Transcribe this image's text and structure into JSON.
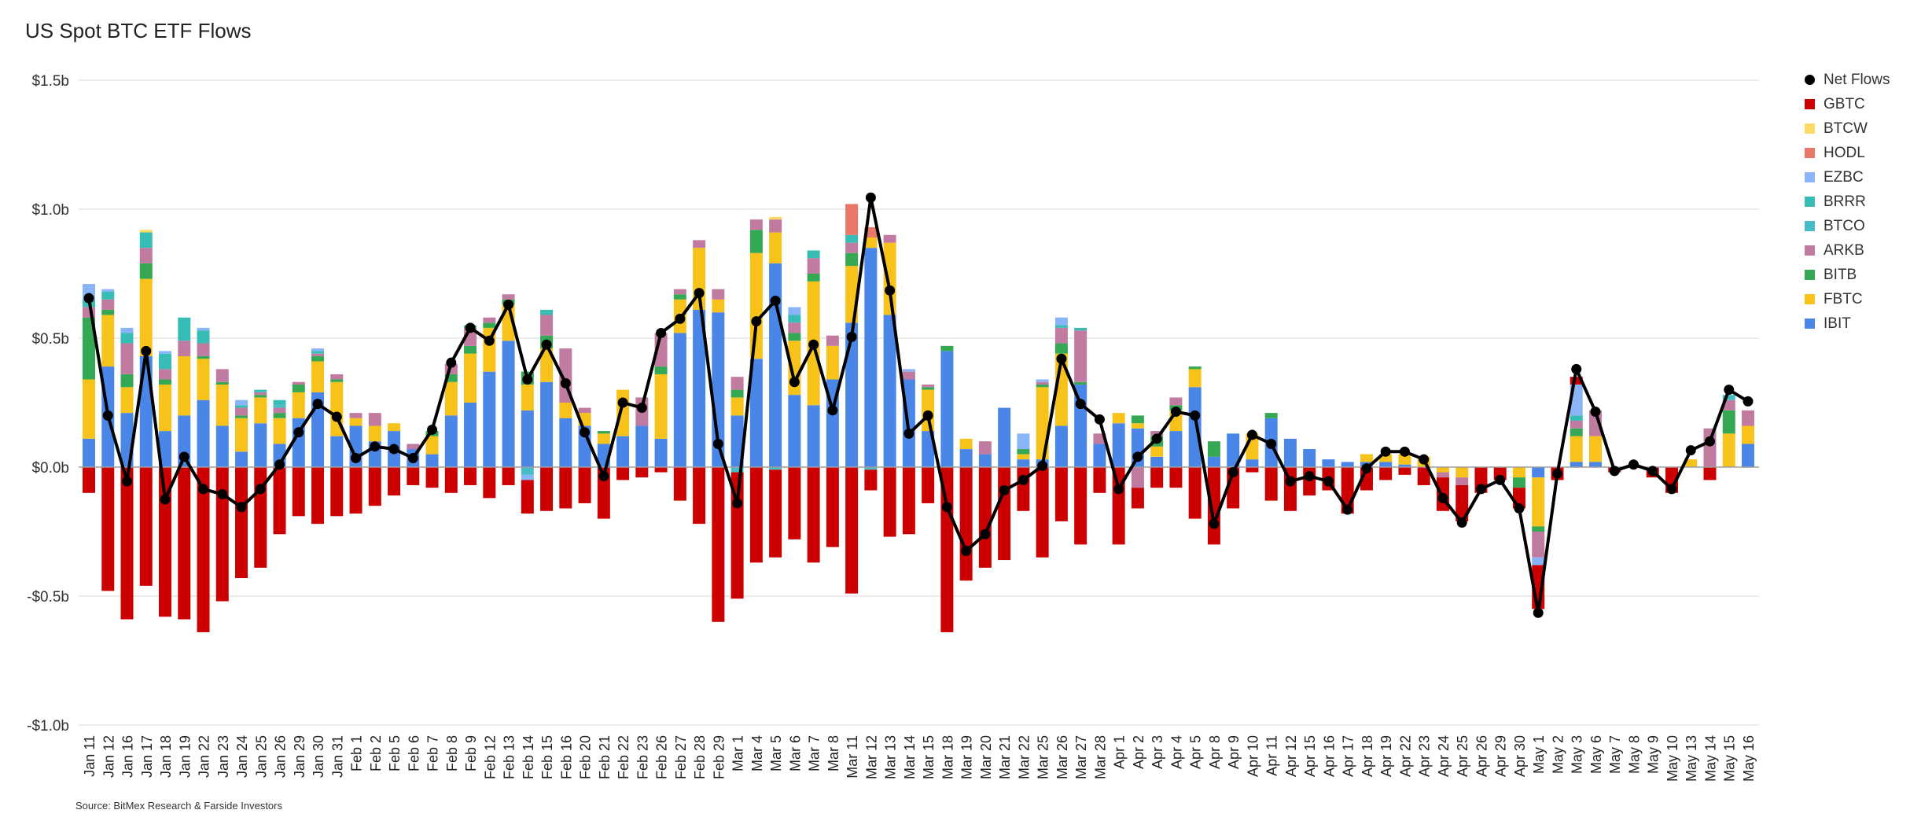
{
  "chart_data": {
    "type": "bar",
    "title": "US Spot BTC ETF Flows",
    "source": "Source: BitMex Research & Farside Investors",
    "ylim": [
      -1.0,
      1.5
    ],
    "yticks": [
      {
        "value": 1.5,
        "label": "$1.5b"
      },
      {
        "value": 1.0,
        "label": "$1.0b"
      },
      {
        "value": 0.5,
        "label": "$0.5b"
      },
      {
        "value": 0.0,
        "label": "$0.0b"
      },
      {
        "value": -0.5,
        "label": "-$0.5b"
      },
      {
        "value": -1.0,
        "label": "-$1.0b"
      }
    ],
    "grid": true,
    "legend_position": "right",
    "categories": [
      "Jan 11",
      "Jan 12",
      "Jan 16",
      "Jan 17",
      "Jan 18",
      "Jan 19",
      "Jan 22",
      "Jan 23",
      "Jan 24",
      "Jan 25",
      "Jan 26",
      "Jan 29",
      "Jan 30",
      "Jan 31",
      "Feb 1",
      "Feb 2",
      "Feb 5",
      "Feb 6",
      "Feb 7",
      "Feb 8",
      "Feb 9",
      "Feb 12",
      "Feb 13",
      "Feb 14",
      "Feb 15",
      "Feb 16",
      "Feb 20",
      "Feb 21",
      "Feb 22",
      "Feb 23",
      "Feb 26",
      "Feb 27",
      "Feb 28",
      "Feb 29",
      "Mar 1",
      "Mar 4",
      "Mar 5",
      "Mar 6",
      "Mar 7",
      "Mar 8",
      "Mar 11",
      "Mar 12",
      "Mar 13",
      "Mar 14",
      "Mar 15",
      "Mar 18",
      "Mar 19",
      "Mar 20",
      "Mar 21",
      "Mar 22",
      "Mar 25",
      "Mar 26",
      "Mar 27",
      "Mar 28",
      "Apr 1",
      "Apr 2",
      "Apr 3",
      "Apr 4",
      "Apr 5",
      "Apr 8",
      "Apr 9",
      "Apr 10",
      "Apr 11",
      "Apr 12",
      "Apr 15",
      "Apr 16",
      "Apr 17",
      "Apr 18",
      "Apr 19",
      "Apr 22",
      "Apr 23",
      "Apr 24",
      "Apr 25",
      "Apr 26",
      "Apr 29",
      "Apr 30",
      "May 1",
      "May 2",
      "May 3",
      "May 6",
      "May 7",
      "May 8",
      "May 9",
      "May 10",
      "May 13",
      "May 14",
      "May 15",
      "May 16"
    ],
    "series": [
      {
        "name": "IBIT",
        "color": "#4a86e8",
        "values": [
          0.11,
          0.39,
          0.21,
          0.43,
          0.14,
          0.2,
          0.26,
          0.16,
          0.06,
          0.17,
          0.09,
          0.19,
          0.29,
          0.12,
          0.16,
          0.1,
          0.14,
          0.07,
          0.05,
          0.2,
          0.25,
          0.37,
          0.49,
          0.22,
          0.33,
          0.19,
          0.16,
          0.09,
          0.12,
          0.16,
          0.11,
          0.52,
          0.61,
          0.6,
          0.2,
          0.42,
          0.79,
          0.28,
          0.24,
          0.34,
          0.56,
          0.85,
          0.59,
          0.34,
          0.14,
          0.45,
          0.07,
          0.05,
          0.23,
          0.03,
          0.03,
          0.16,
          0.32,
          0.09,
          0.17,
          0.15,
          0.04,
          0.14,
          0.31,
          0.04,
          0.13,
          0.03,
          0.19,
          0.11,
          0.07,
          0.03,
          0.02,
          0.02,
          0.02,
          0.01,
          0.0,
          0.0,
          0.0,
          0.0,
          0.0,
          0.0,
          -0.04,
          0.0,
          0.02,
          0.02,
          0.0,
          0.0,
          0.0,
          0.0,
          0.0,
          0.0,
          0.0,
          0.09
        ]
      },
      {
        "name": "FBTC",
        "color": "#f7c31a",
        "values": [
          0.23,
          0.2,
          0.1,
          0.3,
          0.18,
          0.23,
          0.16,
          0.16,
          0.13,
          0.1,
          0.1,
          0.1,
          0.12,
          0.21,
          0.03,
          0.06,
          0.03,
          0.0,
          0.07,
          0.13,
          0.19,
          0.17,
          0.14,
          0.1,
          0.13,
          0.06,
          0.05,
          0.04,
          0.18,
          0.0,
          0.25,
          0.13,
          0.24,
          0.05,
          0.07,
          0.41,
          0.12,
          0.21,
          0.48,
          0.13,
          0.22,
          0.04,
          0.28,
          0.0,
          0.16,
          0.0,
          0.04,
          0.0,
          0.0,
          0.02,
          0.28,
          0.28,
          0.0,
          0.0,
          0.04,
          0.02,
          0.04,
          0.08,
          0.07,
          0.0,
          0.0,
          0.1,
          0.0,
          0.0,
          0.0,
          0.0,
          0.0,
          0.03,
          0.03,
          0.04,
          0.04,
          -0.02,
          -0.04,
          0.0,
          0.0,
          -0.04,
          -0.19,
          0.0,
          0.1,
          0.1,
          0.0,
          0.0,
          0.0,
          0.0,
          0.03,
          0.0,
          0.13,
          0.07
        ]
      },
      {
        "name": "BITB",
        "color": "#34a853",
        "values": [
          0.24,
          0.02,
          0.05,
          0.06,
          0.02,
          0.0,
          0.01,
          0.01,
          0.01,
          0.01,
          0.02,
          0.03,
          0.02,
          0.01,
          0.0,
          0.0,
          0.0,
          0.0,
          0.02,
          0.03,
          0.03,
          0.02,
          0.02,
          0.05,
          0.05,
          0.0,
          0.0,
          0.01,
          0.0,
          0.0,
          0.03,
          0.02,
          0.0,
          0.0,
          0.03,
          0.09,
          0.0,
          0.03,
          0.03,
          0.0,
          0.05,
          0.0,
          0.0,
          0.0,
          0.01,
          0.02,
          0.0,
          0.0,
          0.0,
          0.02,
          0.01,
          0.04,
          0.01,
          0.0,
          0.0,
          0.03,
          0.04,
          0.02,
          0.01,
          0.06,
          0.0,
          0.0,
          0.02,
          0.0,
          0.0,
          0.0,
          0.0,
          0.0,
          0.0,
          0.0,
          0.0,
          0.0,
          0.0,
          0.0,
          0.0,
          -0.04,
          -0.02,
          0.0,
          0.03,
          0.0,
          0.0,
          0.0,
          0.0,
          0.0,
          0.0,
          0.0,
          0.09,
          0.0
        ]
      },
      {
        "name": "ARKB",
        "color": "#c27ba0",
        "values": [
          0.04,
          0.04,
          0.12,
          0.06,
          0.04,
          0.06,
          0.05,
          0.05,
          0.03,
          0.01,
          0.02,
          0.01,
          0.01,
          0.02,
          0.02,
          0.05,
          0.0,
          0.02,
          0.0,
          0.04,
          0.07,
          0.02,
          0.02,
          0.0,
          0.08,
          0.21,
          0.02,
          0.0,
          0.0,
          0.11,
          0.13,
          0.02,
          0.03,
          0.04,
          0.05,
          0.04,
          0.05,
          0.04,
          0.06,
          0.04,
          0.04,
          0.0,
          0.03,
          0.03,
          0.01,
          0.0,
          0.0,
          0.05,
          0.0,
          0.0,
          0.01,
          0.06,
          0.2,
          0.04,
          0.0,
          -0.08,
          0.02,
          0.03,
          0.0,
          0.0,
          0.0,
          0.0,
          0.0,
          0.0,
          0.0,
          0.0,
          0.0,
          0.0,
          0.0,
          0.0,
          0.0,
          -0.02,
          -0.03,
          0.0,
          0.0,
          0.0,
          -0.1,
          0.0,
          0.03,
          0.1,
          0.0,
          0.0,
          0.0,
          0.0,
          0.0,
          0.15,
          0.04,
          0.06
        ]
      },
      {
        "name": "BTCO",
        "color": "#46bdc6",
        "values": [
          0.0,
          0.0,
          0.0,
          0.0,
          0.0,
          0.0,
          0.0,
          0.0,
          0.0,
          0.0,
          0.01,
          0.0,
          0.0,
          0.0,
          0.0,
          0.0,
          0.0,
          0.0,
          0.0,
          0.0,
          0.0,
          0.0,
          0.0,
          -0.03,
          0.0,
          0.0,
          0.0,
          0.0,
          0.0,
          0.0,
          0.0,
          0.0,
          0.0,
          0.0,
          -0.02,
          0.0,
          -0.01,
          0.0,
          0.0,
          0.0,
          0.0,
          -0.01,
          0.0,
          0.0,
          0.0,
          0.0,
          0.0,
          0.0,
          0.0,
          0.0,
          0.0,
          0.0,
          0.0,
          0.0,
          0.0,
          0.0,
          0.0,
          0.0,
          0.0,
          0.0,
          0.0,
          0.0,
          0.0,
          0.0,
          0.0,
          0.0,
          0.0,
          0.0,
          0.0,
          0.0,
          0.0,
          0.0,
          0.0,
          0.0,
          0.0,
          0.0,
          0.0,
          0.0,
          0.0,
          0.0,
          0.0,
          0.0,
          0.0,
          0.0,
          0.0,
          0.0,
          0.02,
          0.0
        ]
      },
      {
        "name": "BRRR",
        "color": "#38bdb6",
        "values": [
          0.03,
          0.03,
          0.04,
          0.06,
          0.06,
          0.09,
          0.05,
          0.0,
          0.01,
          0.01,
          0.02,
          0.0,
          0.01,
          0.0,
          0.0,
          0.0,
          0.0,
          0.0,
          0.0,
          0.0,
          0.01,
          0.0,
          0.0,
          0.0,
          0.02,
          0.0,
          0.0,
          0.0,
          0.0,
          0.0,
          0.0,
          0.0,
          0.0,
          0.0,
          0.0,
          0.0,
          0.0,
          0.03,
          0.03,
          0.0,
          0.03,
          0.0,
          0.0,
          0.0,
          0.0,
          0.0,
          0.0,
          0.0,
          0.0,
          0.0,
          0.0,
          0.01,
          0.01,
          0.0,
          0.0,
          0.0,
          0.0,
          0.0,
          0.0,
          0.0,
          0.0,
          0.0,
          0.0,
          0.0,
          0.0,
          0.0,
          0.0,
          0.0,
          0.0,
          0.0,
          0.0,
          0.0,
          0.0,
          0.0,
          0.0,
          0.0,
          0.0,
          0.0,
          0.02,
          0.0,
          0.0,
          0.0,
          0.0,
          0.0,
          0.0,
          0.0,
          0.0,
          0.0
        ]
      },
      {
        "name": "EZBC",
        "color": "#8ab4f8",
        "values": [
          0.06,
          0.01,
          0.02,
          0.0,
          0.01,
          0.0,
          0.01,
          0.0,
          0.02,
          0.0,
          0.0,
          0.0,
          0.01,
          0.0,
          0.0,
          0.0,
          0.0,
          0.0,
          0.0,
          0.0,
          0.0,
          0.0,
          0.0,
          -0.02,
          0.0,
          0.0,
          0.0,
          0.0,
          0.0,
          0.0,
          0.0,
          0.0,
          0.0,
          0.0,
          0.0,
          0.0,
          0.0,
          0.03,
          0.0,
          0.0,
          0.0,
          0.0,
          0.0,
          0.01,
          0.0,
          0.0,
          0.0,
          0.0,
          0.0,
          0.06,
          0.01,
          0.03,
          0.0,
          0.0,
          0.0,
          0.0,
          0.0,
          0.0,
          0.0,
          0.0,
          0.0,
          0.0,
          0.0,
          0.0,
          0.0,
          0.0,
          0.0,
          0.0,
          0.0,
          0.0,
          0.0,
          0.0,
          0.0,
          0.0,
          0.0,
          0.0,
          -0.03,
          0.0,
          0.12,
          0.0,
          0.0,
          0.0,
          0.0,
          0.0,
          0.0,
          0.0,
          0.0,
          0.0
        ]
      },
      {
        "name": "HODL",
        "color": "#e8776a",
        "values": [
          0.0,
          0.0,
          0.0,
          0.0,
          0.0,
          0.0,
          0.0,
          0.0,
          0.0,
          0.0,
          0.0,
          0.0,
          0.0,
          0.0,
          0.0,
          0.0,
          0.0,
          0.0,
          0.0,
          0.0,
          0.0,
          0.0,
          0.0,
          0.0,
          0.0,
          0.0,
          0.0,
          0.0,
          0.0,
          0.0,
          0.0,
          0.0,
          0.0,
          0.0,
          0.0,
          0.0,
          0.0,
          0.0,
          0.0,
          0.0,
          0.12,
          0.04,
          0.0,
          0.0,
          0.0,
          0.0,
          0.0,
          0.0,
          0.0,
          0.0,
          0.0,
          0.0,
          0.0,
          0.0,
          0.0,
          0.0,
          0.0,
          0.0,
          0.0,
          0.0,
          0.0,
          0.0,
          0.0,
          0.0,
          0.0,
          0.0,
          0.0,
          0.0,
          0.0,
          0.0,
          0.0,
          0.0,
          0.0,
          0.0,
          0.0,
          0.0,
          0.0,
          0.0,
          0.0,
          0.0,
          0.0,
          0.0,
          0.0,
          0.0,
          0.0,
          0.0,
          0.0,
          0.0
        ]
      },
      {
        "name": "BTCW",
        "color": "#ffd966",
        "values": [
          0.0,
          0.0,
          0.0,
          0.01,
          0.0,
          0.0,
          0.0,
          0.0,
          0.0,
          0.0,
          0.0,
          0.0,
          0.0,
          0.0,
          0.0,
          0.0,
          0.0,
          0.0,
          0.0,
          0.0,
          0.0,
          0.0,
          0.0,
          0.0,
          0.0,
          0.0,
          0.0,
          0.0,
          0.0,
          0.0,
          0.0,
          0.0,
          0.0,
          0.0,
          0.0,
          0.0,
          0.01,
          0.0,
          0.0,
          0.0,
          0.0,
          0.0,
          0.0,
          0.0,
          0.0,
          0.0,
          0.0,
          0.0,
          0.0,
          0.0,
          0.0,
          0.0,
          0.0,
          0.0,
          0.0,
          0.0,
          0.0,
          0.0,
          0.0,
          0.0,
          0.0,
          0.0,
          0.0,
          0.0,
          0.0,
          0.0,
          0.0,
          0.0,
          0.0,
          0.0,
          0.0,
          0.0,
          0.0,
          0.0,
          0.0,
          0.0,
          0.0,
          0.0,
          0.0,
          0.0,
          0.0,
          0.0,
          0.0,
          0.0,
          0.0,
          0.0,
          0.0,
          0.0
        ]
      },
      {
        "name": "GBTC",
        "color": "#cc0000",
        "values": [
          -0.1,
          -0.48,
          -0.59,
          -0.46,
          -0.58,
          -0.59,
          -0.64,
          -0.52,
          -0.43,
          -0.39,
          -0.26,
          -0.19,
          -0.22,
          -0.19,
          -0.18,
          -0.15,
          -0.11,
          -0.07,
          -0.08,
          -0.1,
          -0.07,
          -0.12,
          -0.07,
          -0.13,
          -0.17,
          -0.16,
          -0.14,
          -0.2,
          -0.05,
          -0.04,
          -0.02,
          -0.13,
          -0.22,
          -0.6,
          -0.49,
          -0.37,
          -0.34,
          -0.28,
          -0.37,
          -0.31,
          -0.49,
          -0.08,
          -0.27,
          -0.26,
          -0.14,
          -0.64,
          -0.44,
          -0.39,
          -0.36,
          -0.17,
          -0.35,
          -0.21,
          -0.3,
          -0.1,
          -0.3,
          -0.08,
          -0.08,
          -0.08,
          -0.2,
          -0.3,
          -0.16,
          -0.02,
          -0.13,
          -0.17,
          -0.11,
          -0.09,
          -0.18,
          -0.09,
          -0.05,
          -0.03,
          -0.07,
          -0.13,
          -0.14,
          -0.1,
          -0.05,
          -0.08,
          -0.17,
          -0.05,
          0.03,
          0.0,
          -0.02,
          0.0,
          -0.04,
          -0.1,
          0.0,
          -0.05,
          0.0,
          0.0
        ]
      }
    ],
    "net_flows": {
      "name": "Net Flows",
      "color": "#000000",
      "values": [
        0.655,
        0.2,
        -0.055,
        0.45,
        -0.125,
        0.04,
        -0.085,
        -0.105,
        -0.155,
        -0.085,
        0.01,
        0.135,
        0.245,
        0.195,
        0.035,
        0.08,
        0.07,
        0.035,
        0.145,
        0.405,
        0.54,
        0.49,
        0.63,
        0.34,
        0.475,
        0.325,
        0.135,
        -0.035,
        0.25,
        0.23,
        0.52,
        0.575,
        0.675,
        0.09,
        -0.14,
        0.565,
        0.645,
        0.33,
        0.475,
        0.22,
        0.505,
        1.045,
        0.685,
        0.13,
        0.2,
        -0.155,
        -0.325,
        -0.26,
        -0.09,
        -0.05,
        0.005,
        0.42,
        0.245,
        0.185,
        -0.085,
        0.04,
        0.11,
        0.215,
        0.2,
        -0.22,
        -0.02,
        0.125,
        0.09,
        -0.055,
        -0.035,
        -0.055,
        -0.165,
        -0.005,
        0.06,
        0.06,
        0.03,
        -0.12,
        -0.215,
        -0.085,
        -0.05,
        -0.16,
        -0.565,
        -0.025,
        0.38,
        0.215,
        -0.015,
        0.01,
        -0.015,
        -0.085,
        0.065,
        0.1,
        0.3,
        0.255
      ]
    },
    "legend": [
      {
        "name": "Net Flows",
        "color": "#000000",
        "marker": "dot"
      },
      {
        "name": "GBTC",
        "color": "#cc0000",
        "marker": "square"
      },
      {
        "name": "BTCW",
        "color": "#ffd966",
        "marker": "square"
      },
      {
        "name": "HODL",
        "color": "#e8776a",
        "marker": "square"
      },
      {
        "name": "EZBC",
        "color": "#8ab4f8",
        "marker": "square"
      },
      {
        "name": "BRRR",
        "color": "#38bdb6",
        "marker": "square"
      },
      {
        "name": "BTCO",
        "color": "#46bdc6",
        "marker": "square"
      },
      {
        "name": "ARKB",
        "color": "#c27ba0",
        "marker": "square"
      },
      {
        "name": "BITB",
        "color": "#34a853",
        "marker": "square"
      },
      {
        "name": "FBTC",
        "color": "#f7c31a",
        "marker": "square"
      },
      {
        "name": "IBIT",
        "color": "#4a86e8",
        "marker": "square"
      }
    ]
  }
}
